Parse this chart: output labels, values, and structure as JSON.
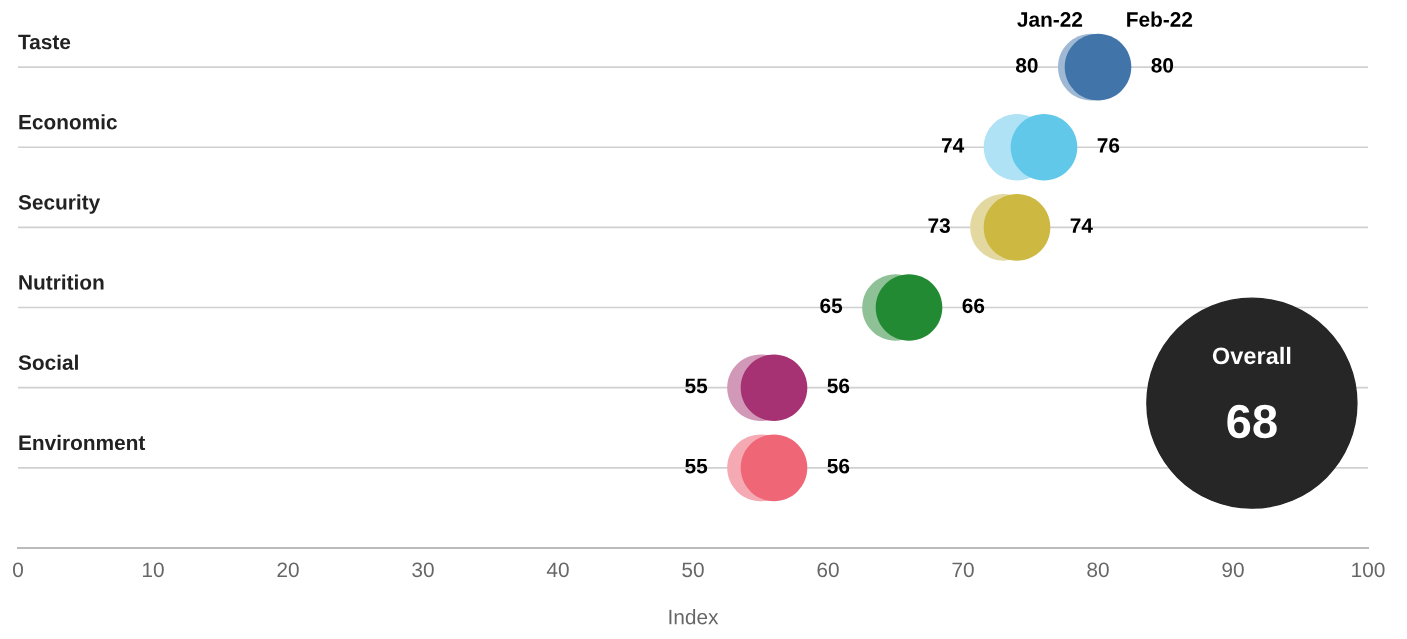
{
  "chart_data": {
    "type": "scatter",
    "orientation": "horizontal",
    "xlabel": "Index",
    "categories": [
      "Taste",
      "Economic",
      "Security",
      "Nutrition",
      "Social",
      "Environment"
    ],
    "series": [
      {
        "name": "Jan-22",
        "colors": [
          "#9fb9d4",
          "#aee2f4",
          "#e3d9a0",
          "#8fc197",
          "#d198b8",
          "#f5aab3"
        ],
        "values": [
          79.5,
          74,
          73,
          65,
          55,
          55
        ],
        "value_labels": [
          "80",
          "74",
          "73",
          "65",
          "55",
          "55"
        ]
      },
      {
        "name": "Feb-22",
        "colors": [
          "#4174a8",
          "#62c8ea",
          "#cdb842",
          "#238a34",
          "#a63173",
          "#ef6677"
        ],
        "values": [
          80,
          76,
          74,
          66,
          56,
          56
        ],
        "value_labels": [
          "80",
          "76",
          "74",
          "66",
          "56",
          "56"
        ]
      }
    ],
    "xlim": [
      0,
      100
    ],
    "xticks": [
      0,
      10,
      20,
      30,
      40,
      50,
      60,
      70,
      80,
      90,
      100
    ],
    "grid": "y",
    "marker": "circle",
    "legend": false,
    "annotations": [
      "Overall",
      "68"
    ]
  }
}
